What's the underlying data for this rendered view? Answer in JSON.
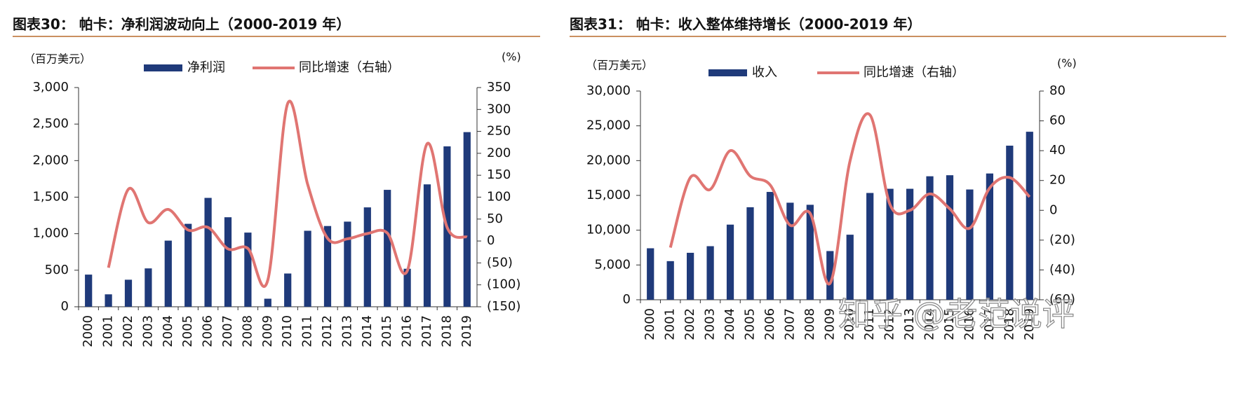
{
  "chart_data": [
    {
      "type": "bar-line",
      "title": "图表30：  帕卡：净利润波动向上（2000-2019 年）",
      "y_label": "（百万美元）",
      "y2_label": "(%)",
      "categories": [
        "2000",
        "2001",
        "2002",
        "2003",
        "2004",
        "2005",
        "2006",
        "2007",
        "2008",
        "2009",
        "2010",
        "2011",
        "2012",
        "2013",
        "2014",
        "2015",
        "2016",
        "2017",
        "2018",
        "2019"
      ],
      "series": [
        {
          "name": "净利润",
          "type": "bar",
          "color": "#1f3a7a",
          "values": [
            440,
            170,
            370,
            525,
            905,
            1135,
            1490,
            1225,
            1015,
            110,
            455,
            1040,
            1105,
            1165,
            1360,
            1600,
            520,
            1675,
            2195,
            2390
          ]
        },
        {
          "name": "同比增速（右轴）",
          "type": "line",
          "axis": "y2",
          "color": "#e07572",
          "values": [
            null,
            -61,
            118,
            42,
            72,
            25,
            31,
            -18,
            -17,
            -89,
            314,
            129,
            6,
            5,
            17,
            18,
            -68,
            222,
            31,
            9
          ]
        }
      ],
      "ylim": [
        0,
        3000
      ],
      "yticks": [
        0,
        500,
        {
          "value": 1000,
          "label": "1,000"
        },
        {
          "value": 1500,
          "label": "1,500"
        },
        {
          "value": 2000,
          "label": "2,000"
        },
        {
          "value": 2500,
          "label": "2,500"
        },
        {
          "value": 3000,
          "label": "3,000"
        }
      ],
      "y2lim": [
        -150,
        350
      ],
      "y2ticks": [
        {
          "value": -150,
          "label": "(150)"
        },
        {
          "value": -100,
          "label": "(100)"
        },
        {
          "value": -50,
          "label": "(50)"
        },
        0,
        50,
        100,
        150,
        200,
        250,
        300,
        350
      ]
    },
    {
      "type": "bar-line",
      "title": "图表31：  帕卡：收入整体维持增长（2000-2019 年）",
      "y_label": "（百万美元）",
      "y2_label": "(%)",
      "categories": [
        "2000",
        "2001",
        "2002",
        "2003",
        "2004",
        "2005",
        "2006",
        "2007",
        "2008",
        "2009",
        "2010",
        "2011",
        "2012",
        "2013",
        "2014",
        "2015",
        "2016",
        "2017",
        "2018",
        "2019"
      ],
      "series": [
        {
          "name": "收入",
          "type": "bar",
          "color": "#1f3a7a",
          "values": [
            7400,
            5550,
            6750,
            7700,
            10800,
            13300,
            15500,
            13950,
            13650,
            7000,
            9350,
            15350,
            15950,
            15950,
            17750,
            17900,
            15850,
            18150,
            22150,
            24150
          ]
        },
        {
          "name": "同比增速（右轴）",
          "type": "line",
          "axis": "y2",
          "color": "#e07572",
          "values": [
            null,
            -25,
            22,
            14,
            40,
            23,
            17,
            -10,
            -2,
            -49,
            33,
            64,
            4,
            0,
            11,
            1,
            -12,
            15,
            22,
            9
          ]
        }
      ],
      "ylim": [
        0,
        30000
      ],
      "yticks": [
        0,
        {
          "value": 5000,
          "label": "5,000"
        },
        {
          "value": 10000,
          "label": "10,000"
        },
        {
          "value": 15000,
          "label": "15,000"
        },
        {
          "value": 20000,
          "label": "20,000"
        },
        {
          "value": 25000,
          "label": "25,000"
        },
        {
          "value": 30000,
          "label": "30,000"
        }
      ],
      "y2lim": [
        -60,
        80
      ],
      "y2ticks": [
        {
          "value": -60,
          "label": "(60)"
        },
        {
          "value": -40,
          "label": "(40)"
        },
        {
          "value": -20,
          "label": "(20)"
        },
        0,
        20,
        40,
        60,
        80
      ],
      "watermark": "知乎 @老范说评"
    }
  ]
}
